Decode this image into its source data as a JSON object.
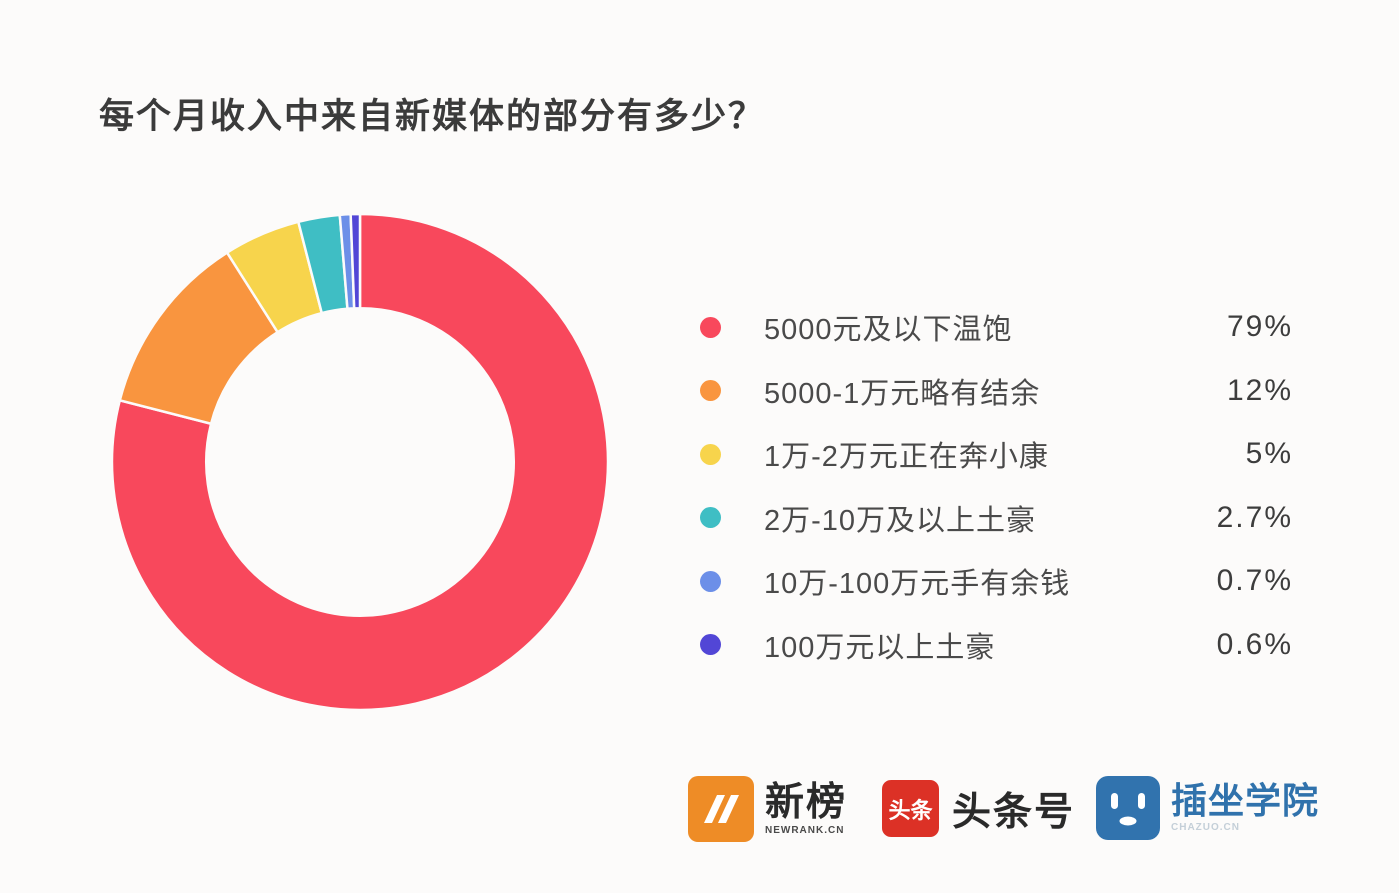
{
  "title": "每个月收入中来自新媒体的部分有多少？",
  "chart_data": {
    "type": "pie",
    "subtype": "donut",
    "title": "每个月收入中来自新媒体的部分有多少？",
    "start_angle_deg": 0,
    "direction": "clockwise",
    "legend_position": "right",
    "inner_radius_ratio": 0.62,
    "categories": [
      "5000元及以下温饱",
      "5000-1万元略有结余",
      "1万-2万元正在奔小康",
      "2万-10万及以上土豪",
      "10万-100万元手有余钱",
      "100万元以上土豪"
    ],
    "values": [
      79,
      12,
      5,
      2.7,
      0.7,
      0.6
    ],
    "value_labels": [
      "79%",
      "12%",
      "5%",
      "2.7%",
      "0.7%",
      "0.6%"
    ],
    "colors": [
      "#F8485C",
      "#F9953F",
      "#F7D44C",
      "#3FBEC4",
      "#6C8FE8",
      "#5246D6"
    ]
  },
  "footer": {
    "brands": [
      {
        "label": "新榜",
        "sub": "NEWRANK.CN"
      },
      {
        "icon_text": "头条",
        "label": "头条号"
      },
      {
        "label": "插坐学院",
        "sub": "CHAZUO.CN"
      }
    ]
  },
  "colors": {
    "background": "#FCFBFA",
    "title_text": "#3B3B3B",
    "legend_text": "#4A4A4A",
    "newrank_orange": "#EE8C26",
    "toutiao_red": "#DC3126",
    "chazuo_blue": "#3173AE"
  }
}
